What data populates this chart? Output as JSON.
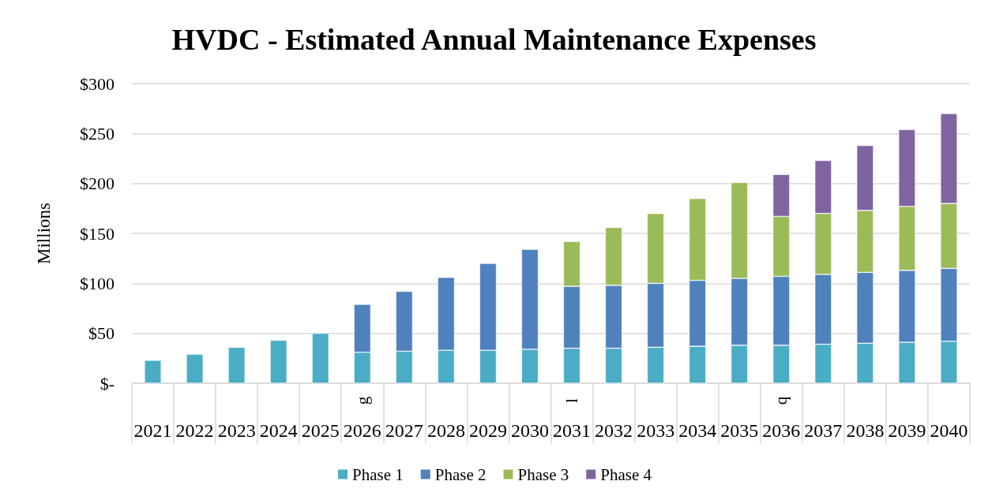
{
  "chart_data": {
    "type": "bar",
    "title": "HVDC - Estimated Annual Maintenance Expenses",
    "ylabel": "Millions",
    "categories": [
      "2021",
      "2022",
      "2023",
      "2024",
      "2025",
      "2026",
      "2027",
      "2028",
      "2029",
      "2030",
      "2031",
      "2032",
      "2033",
      "2034",
      "2035",
      "2036",
      "2037",
      "2038",
      "2039",
      "2040"
    ],
    "series": [
      {
        "name": "Phase 1",
        "color": "#4bacc6",
        "values": [
          23,
          29,
          36,
          43,
          50,
          31,
          32,
          33,
          33,
          34,
          35,
          35,
          36,
          37,
          38,
          38,
          39,
          40,
          41,
          42
        ]
      },
      {
        "name": "Phase 2",
        "color": "#4f81bd",
        "values": [
          null,
          null,
          null,
          null,
          null,
          48,
          60,
          73,
          87,
          100,
          62,
          63,
          64,
          66,
          67,
          69,
          70,
          71,
          72,
          73
        ]
      },
      {
        "name": "Phase 3",
        "color": "#9bbb59",
        "values": [
          null,
          null,
          null,
          null,
          null,
          null,
          null,
          null,
          null,
          null,
          45,
          58,
          70,
          82,
          96,
          60,
          61,
          62,
          64,
          65
        ]
      },
      {
        "name": "Phase 4",
        "color": "#8064a2",
        "values": [
          null,
          null,
          null,
          null,
          null,
          null,
          null,
          null,
          null,
          null,
          null,
          null,
          null,
          null,
          null,
          42,
          53,
          65,
          77,
          90
        ]
      }
    ],
    "stacked": true,
    "ylim": [
      0,
      300
    ],
    "yticks": [
      {
        "value": 0,
        "label": "$-"
      },
      {
        "value": 50,
        "label": "$50"
      },
      {
        "value": 100,
        "label": "$100"
      },
      {
        "value": 150,
        "label": "$150"
      },
      {
        "value": 200,
        "label": "$200"
      },
      {
        "value": 250,
        "label": "$250"
      },
      {
        "value": 300,
        "label": "$300"
      }
    ],
    "grid": "y",
    "legend": "bottom",
    "annotations": [
      "g",
      "l",
      "q"
    ]
  }
}
